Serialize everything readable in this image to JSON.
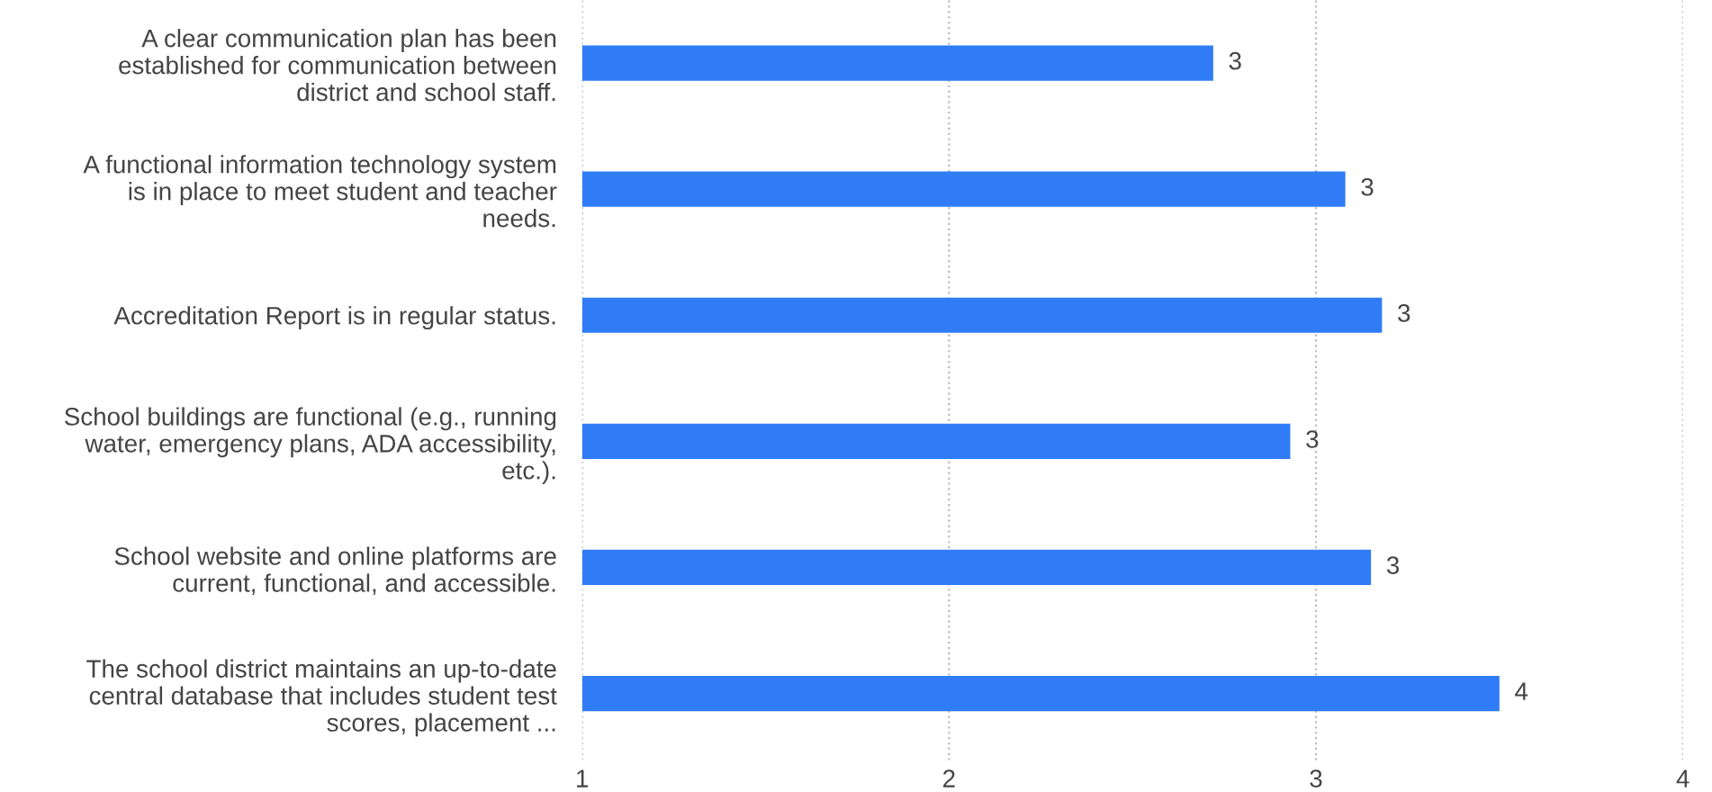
{
  "chart_data": {
    "type": "bar",
    "orientation": "horizontal",
    "categories": [
      "A clear communication plan has been\nestablished for communication between\ndistrict and school staff.",
      "A functional information technology system\nis in place to meet student and teacher\nneeds.",
      "Accreditation Report is in regular status.",
      "School buildings are functional (e.g., running\nwater, emergency plans, ADA accessibility,\netc.).",
      "School website and online platforms are\ncurrent, functional, and accessible.",
      "The school district maintains an up-to-date\ncentral database that includes student test\nscores, placement ..."
    ],
    "values": [
      2.72,
      3.08,
      3.18,
      2.93,
      3.15,
      3.5
    ],
    "value_labels": [
      "3",
      "3",
      "3",
      "3",
      "3",
      "4"
    ],
    "color": "#2f7cf6",
    "xlim": [
      1,
      4
    ],
    "xticks": [
      1,
      2,
      3,
      4
    ],
    "grid": "x",
    "legend": false
  }
}
